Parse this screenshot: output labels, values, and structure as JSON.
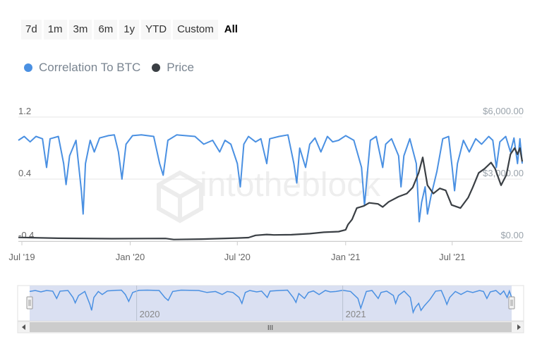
{
  "range_selector": {
    "buttons": [
      "7d",
      "1m",
      "3m",
      "6m",
      "1y",
      "YTD",
      "Custom",
      "All"
    ],
    "active": "All"
  },
  "colors": {
    "correlation": "#4a90e2",
    "price": "#3a3f44",
    "grid": "#e6e6e6",
    "axis_text": "#666666",
    "right_axis_text": "#9aa3ab",
    "navigator_fill": "#d3dbf0"
  },
  "watermark_icon": "intotheblock-logo-icon",
  "chart_data": {
    "type": "line",
    "x_axis": {
      "type": "datetime",
      "range": [
        "2019-06-25",
        "2021-10-28"
      ],
      "tick_labels": [
        "Jul '19",
        "Jan '20",
        "Jul '20",
        "Jan '21",
        "Jul '21"
      ],
      "tick_dates": [
        "2019-07-01",
        "2020-01-01",
        "2020-07-01",
        "2021-01-01",
        "2021-07-01"
      ]
    },
    "y_axis_left": {
      "series": "Correlation To BTC",
      "range": [
        -0.4,
        1.2
      ],
      "tick_labels": [
        "-0.4",
        "0.4",
        "1.2"
      ],
      "ticks": [
        -0.4,
        0.4,
        1.2
      ]
    },
    "y_axis_right": {
      "series": "Price",
      "range": [
        0,
        6000
      ],
      "tick_labels": [
        "$0.00",
        "$3,000.00",
        "$6,000.00"
      ],
      "ticks": [
        0,
        3000,
        6000
      ]
    },
    "grid": true,
    "legend": {
      "position": "top-left",
      "items": [
        "Correlation To BTC",
        "Price"
      ]
    },
    "series": [
      {
        "name": "Correlation To BTC",
        "axis": "left",
        "points": [
          [
            "2019-06-25",
            0.9
          ],
          [
            "2019-07-05",
            0.95
          ],
          [
            "2019-07-15",
            0.88
          ],
          [
            "2019-07-25",
            0.95
          ],
          [
            "2019-08-05",
            0.92
          ],
          [
            "2019-08-12",
            0.55
          ],
          [
            "2019-08-18",
            0.92
          ],
          [
            "2019-09-01",
            0.95
          ],
          [
            "2019-09-10",
            0.6
          ],
          [
            "2019-09-14",
            0.33
          ],
          [
            "2019-09-20",
            0.7
          ],
          [
            "2019-10-01",
            0.9
          ],
          [
            "2019-10-10",
            0.25
          ],
          [
            "2019-10-13",
            -0.05
          ],
          [
            "2019-10-17",
            0.6
          ],
          [
            "2019-10-25",
            0.9
          ],
          [
            "2019-11-01",
            0.75
          ],
          [
            "2019-11-10",
            0.93
          ],
          [
            "2019-11-25",
            0.96
          ],
          [
            "2019-12-05",
            0.97
          ],
          [
            "2019-12-12",
            0.75
          ],
          [
            "2019-12-18",
            0.4
          ],
          [
            "2019-12-25",
            0.85
          ],
          [
            "2020-01-05",
            0.96
          ],
          [
            "2020-01-20",
            0.97
          ],
          [
            "2020-02-10",
            0.95
          ],
          [
            "2020-02-20",
            0.6
          ],
          [
            "2020-02-26",
            0.45
          ],
          [
            "2020-03-05",
            0.9
          ],
          [
            "2020-03-20",
            0.97
          ],
          [
            "2020-04-20",
            0.95
          ],
          [
            "2020-05-05",
            0.85
          ],
          [
            "2020-05-20",
            0.9
          ],
          [
            "2020-06-01",
            0.75
          ],
          [
            "2020-06-10",
            0.9
          ],
          [
            "2020-06-20",
            0.85
          ],
          [
            "2020-07-01",
            0.6
          ],
          [
            "2020-07-06",
            0.3
          ],
          [
            "2020-07-12",
            0.85
          ],
          [
            "2020-07-20",
            0.95
          ],
          [
            "2020-08-01",
            0.88
          ],
          [
            "2020-08-10",
            0.92
          ],
          [
            "2020-08-20",
            0.6
          ],
          [
            "2020-08-25",
            0.92
          ],
          [
            "2020-09-10",
            0.95
          ],
          [
            "2020-09-25",
            0.97
          ],
          [
            "2020-10-05",
            0.6
          ],
          [
            "2020-10-10",
            0.35
          ],
          [
            "2020-10-15",
            0.8
          ],
          [
            "2020-10-25",
            0.55
          ],
          [
            "2020-11-01",
            0.85
          ],
          [
            "2020-11-10",
            0.93
          ],
          [
            "2020-11-20",
            0.75
          ],
          [
            "2020-12-01",
            0.95
          ],
          [
            "2020-12-10",
            0.88
          ],
          [
            "2020-12-20",
            0.9
          ],
          [
            "2021-01-01",
            0.96
          ],
          [
            "2021-01-15",
            0.9
          ],
          [
            "2021-01-28",
            0.55
          ],
          [
            "2021-02-02",
            0.06
          ],
          [
            "2021-02-06",
            0.4
          ],
          [
            "2021-02-12",
            0.9
          ],
          [
            "2021-02-22",
            0.95
          ],
          [
            "2021-03-05",
            0.55
          ],
          [
            "2021-03-10",
            0.85
          ],
          [
            "2021-03-20",
            0.92
          ],
          [
            "2021-04-01",
            0.7
          ],
          [
            "2021-04-05",
            0.3
          ],
          [
            "2021-04-10",
            0.7
          ],
          [
            "2021-04-20",
            0.92
          ],
          [
            "2021-05-01",
            0.6
          ],
          [
            "2021-05-06",
            -0.15
          ],
          [
            "2021-05-10",
            0.1
          ],
          [
            "2021-05-16",
            0.3
          ],
          [
            "2021-05-20",
            -0.05
          ],
          [
            "2021-05-26",
            0.18
          ],
          [
            "2021-06-05",
            0.5
          ],
          [
            "2021-06-15",
            0.92
          ],
          [
            "2021-06-25",
            0.95
          ],
          [
            "2021-07-01",
            0.55
          ],
          [
            "2021-07-05",
            0.25
          ],
          [
            "2021-07-10",
            0.6
          ],
          [
            "2021-07-20",
            0.9
          ],
          [
            "2021-07-30",
            0.75
          ],
          [
            "2021-08-10",
            0.92
          ],
          [
            "2021-08-20",
            0.85
          ],
          [
            "2021-09-01",
            0.95
          ],
          [
            "2021-09-08",
            0.9
          ],
          [
            "2021-09-14",
            0.55
          ],
          [
            "2021-09-20",
            0.88
          ],
          [
            "2021-09-30",
            0.95
          ],
          [
            "2021-10-08",
            0.75
          ],
          [
            "2021-10-14",
            0.93
          ],
          [
            "2021-10-20",
            0.6
          ],
          [
            "2021-10-24",
            0.92
          ],
          [
            "2021-10-28",
            0.6
          ]
        ]
      },
      {
        "name": "Price",
        "axis": "right",
        "points": [
          [
            "2019-06-25",
            180
          ],
          [
            "2019-09-01",
            140
          ],
          [
            "2019-12-01",
            120
          ],
          [
            "2020-03-01",
            130
          ],
          [
            "2020-03-15",
            80
          ],
          [
            "2020-05-01",
            100
          ],
          [
            "2020-07-01",
            150
          ],
          [
            "2020-07-20",
            170
          ],
          [
            "2020-08-01",
            280
          ],
          [
            "2020-08-20",
            320
          ],
          [
            "2020-09-01",
            300
          ],
          [
            "2020-10-01",
            310
          ],
          [
            "2020-11-01",
            360
          ],
          [
            "2020-11-25",
            430
          ],
          [
            "2020-12-20",
            460
          ],
          [
            "2021-01-01",
            550
          ],
          [
            "2021-01-05",
            800
          ],
          [
            "2021-01-12",
            1050
          ],
          [
            "2021-01-20",
            1600
          ],
          [
            "2021-02-01",
            1700
          ],
          [
            "2021-02-10",
            1850
          ],
          [
            "2021-02-25",
            1800
          ],
          [
            "2021-03-05",
            1650
          ],
          [
            "2021-03-15",
            1900
          ],
          [
            "2021-04-01",
            2150
          ],
          [
            "2021-04-15",
            2300
          ],
          [
            "2021-04-25",
            2600
          ],
          [
            "2021-05-05",
            3300
          ],
          [
            "2021-05-12",
            4050
          ],
          [
            "2021-05-20",
            2700
          ],
          [
            "2021-05-30",
            2300
          ],
          [
            "2021-06-10",
            2550
          ],
          [
            "2021-06-20",
            2450
          ],
          [
            "2021-06-30",
            1750
          ],
          [
            "2021-07-15",
            1600
          ],
          [
            "2021-07-28",
            2100
          ],
          [
            "2021-08-05",
            2600
          ],
          [
            "2021-08-15",
            3300
          ],
          [
            "2021-08-25",
            3500
          ],
          [
            "2021-09-05",
            3800
          ],
          [
            "2021-09-12",
            3500
          ],
          [
            "2021-09-22",
            2700
          ],
          [
            "2021-10-01",
            3200
          ],
          [
            "2021-10-08",
            4200
          ],
          [
            "2021-10-15",
            4500
          ],
          [
            "2021-10-20",
            4200
          ],
          [
            "2021-10-24",
            4500
          ],
          [
            "2021-10-28",
            3850
          ]
        ]
      }
    ],
    "navigator": {
      "tick_labels": [
        "2020",
        "2021"
      ],
      "tick_dates": [
        "2020-01-01",
        "2021-01-01"
      ]
    }
  }
}
